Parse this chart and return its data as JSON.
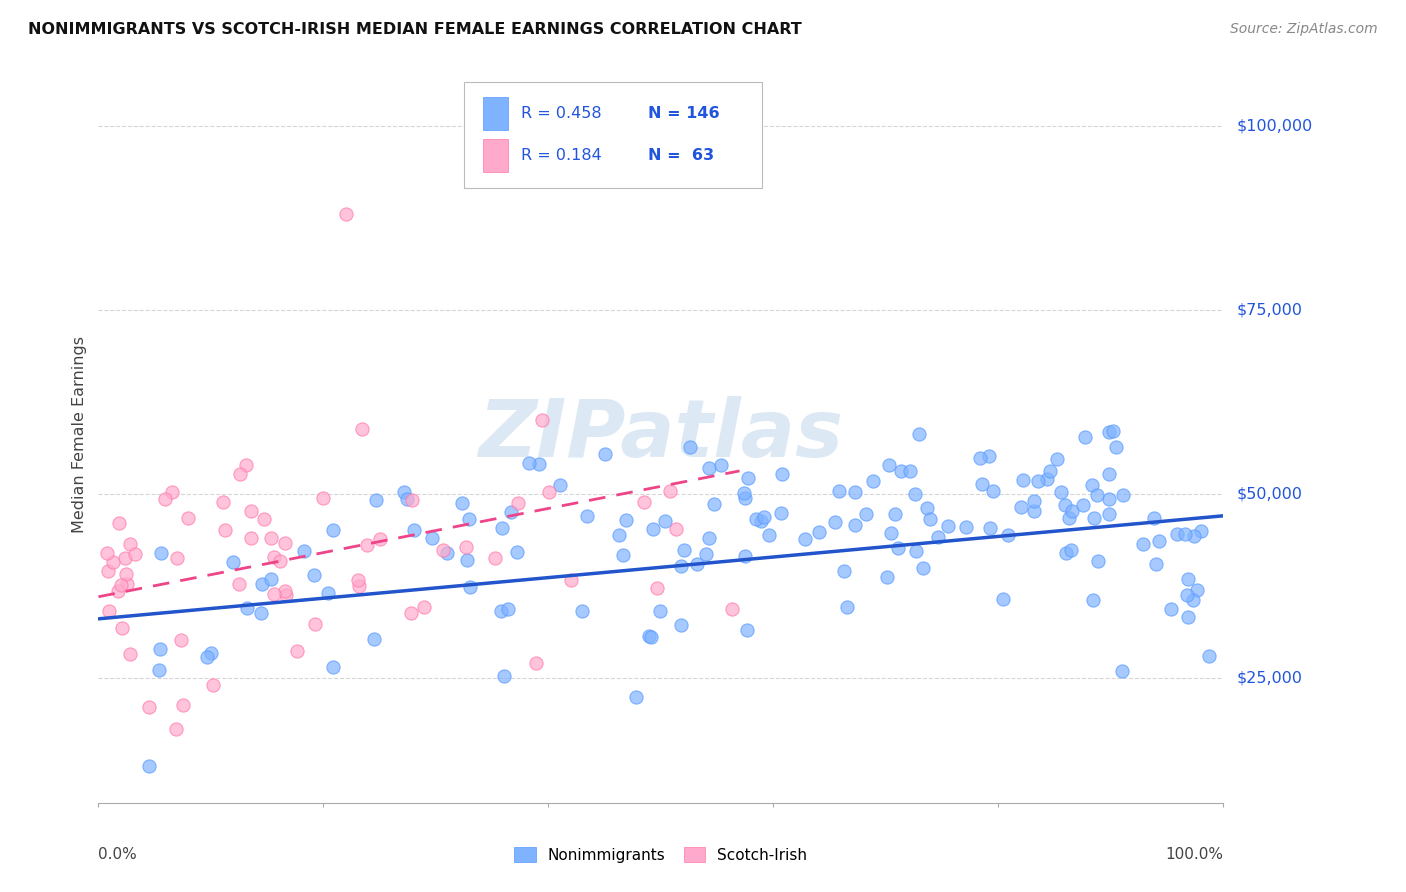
{
  "title": "NONIMMIGRANTS VS SCOTCH-IRISH MEDIAN FEMALE EARNINGS CORRELATION CHART",
  "source": "Source: ZipAtlas.com",
  "ylabel": "Median Female Earnings",
  "ytick_labels": [
    "$25,000",
    "$50,000",
    "$75,000",
    "$100,000"
  ],
  "ytick_values": [
    25000,
    50000,
    75000,
    100000
  ],
  "legend_R1": "0.458",
  "legend_N1": "146",
  "legend_R2": "0.184",
  "legend_N2": "63",
  "blue_color": "#80b3ff",
  "pink_color": "#ffaacc",
  "blue_edge_color": "#5599ff",
  "pink_edge_color": "#ff77aa",
  "trend_blue": "#2255cc",
  "trend_pink": "#ee4488",
  "watermark_color": "#dde8f5",
  "bg_color": "#ffffff",
  "grid_color": "#cccccc",
  "label_blue_color": "#2255dd",
  "title_color": "#111111",
  "source_color": "#888888",
  "axis_label_color": "#444444"
}
